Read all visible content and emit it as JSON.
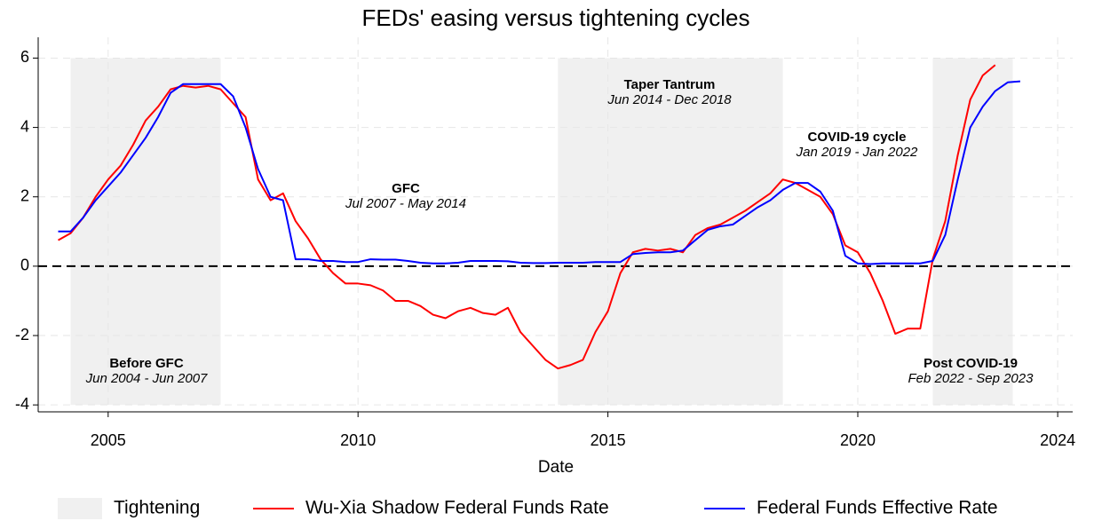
{
  "chart_data": {
    "type": "line",
    "title": "FEDs' easing versus tightening cycles",
    "x_label": "Date",
    "xlim": [
      2003.6,
      2024.3
    ],
    "xticks": [
      2005,
      2010,
      2015,
      2020,
      2024
    ],
    "ylim": [
      -4.2,
      6.6
    ],
    "yticks": [
      -4,
      -2,
      0,
      2,
      4,
      6
    ],
    "grid": true,
    "hline": 0,
    "shade_label": "Tightening",
    "shade_color": "#f0f0f0",
    "shaded_periods": [
      [
        2004.25,
        2007.25
      ],
      [
        2014.0,
        2018.5
      ],
      [
        2021.5,
        2023.1
      ]
    ],
    "annotations": [
      {
        "title": "Before GFC",
        "subtitle": "Jun 2004 - Jun 2007"
      },
      {
        "title": "GFC",
        "subtitle": "Jul 2007 - May 2014"
      },
      {
        "title": "Taper Tantrum",
        "subtitle": "Jun 2014 - Dec 2018"
      },
      {
        "title": "COVID-19 cycle",
        "subtitle": "Jan 2019 - Jan 2022"
      },
      {
        "title": "Post COVID-19",
        "subtitle": "Feb 2022 - Sep 2023"
      }
    ],
    "x": [
      2004,
      2004.25,
      2004.5,
      2004.75,
      2005,
      2005.25,
      2005.5,
      2005.75,
      2006,
      2006.25,
      2006.5,
      2006.75,
      2007,
      2007.25,
      2007.5,
      2007.75,
      2008,
      2008.25,
      2008.5,
      2008.75,
      2009,
      2009.25,
      2009.5,
      2009.75,
      2010,
      2010.25,
      2010.5,
      2010.75,
      2011,
      2011.25,
      2011.5,
      2011.75,
      2012,
      2012.25,
      2012.5,
      2012.75,
      2013,
      2013.25,
      2013.5,
      2013.75,
      2014,
      2014.25,
      2014.5,
      2014.75,
      2015,
      2015.25,
      2015.5,
      2015.75,
      2016,
      2016.25,
      2016.5,
      2016.75,
      2017,
      2017.25,
      2017.5,
      2017.75,
      2018,
      2018.25,
      2018.5,
      2018.75,
      2019,
      2019.25,
      2019.5,
      2019.75,
      2020,
      2020.25,
      2020.5,
      2020.75,
      2021,
      2021.25,
      2021.5,
      2021.75,
      2022,
      2022.25,
      2022.5,
      2022.75,
      2023,
      2023.25
    ],
    "series": [
      {
        "name": "Wu-Xia Shadow Federal Funds Rate",
        "color": "#ff0000",
        "values": [
          0.75,
          0.95,
          1.4,
          2.0,
          2.5,
          2.9,
          3.5,
          4.2,
          4.6,
          5.1,
          5.2,
          5.15,
          5.2,
          5.1,
          4.7,
          4.3,
          2.5,
          1.9,
          2.1,
          1.3,
          0.8,
          0.2,
          -0.2,
          -0.5,
          -0.5,
          -0.55,
          -0.7,
          -1.0,
          -1.0,
          -1.15,
          -1.4,
          -1.5,
          -1.3,
          -1.2,
          -1.35,
          -1.4,
          -1.2,
          -1.9,
          -2.3,
          -2.7,
          -2.95,
          -2.85,
          -2.7,
          -1.9,
          -1.3,
          -0.2,
          0.4,
          0.5,
          0.45,
          0.5,
          0.4,
          0.9,
          1.1,
          1.2,
          1.4,
          1.6,
          1.85,
          2.1,
          2.5,
          2.4,
          2.2,
          2.0,
          1.5,
          0.6,
          0.4,
          -0.2,
          -1.0,
          -1.95,
          -1.8,
          -1.8,
          0.2,
          1.3,
          3.2,
          4.8,
          5.5,
          5.8,
          null,
          null
        ]
      },
      {
        "name": "Federal Funds Effective Rate",
        "color": "#0000ff",
        "values": [
          1.0,
          1.0,
          1.4,
          1.9,
          2.3,
          2.7,
          3.2,
          3.7,
          4.3,
          5.0,
          5.25,
          5.25,
          5.25,
          5.25,
          4.9,
          4.0,
          2.8,
          2.0,
          1.9,
          0.2,
          0.2,
          0.15,
          0.15,
          0.12,
          0.12,
          0.2,
          0.19,
          0.19,
          0.15,
          0.1,
          0.08,
          0.08,
          0.1,
          0.15,
          0.15,
          0.15,
          0.14,
          0.1,
          0.09,
          0.09,
          0.1,
          0.1,
          0.1,
          0.12,
          0.12,
          0.12,
          0.35,
          0.38,
          0.4,
          0.4,
          0.45,
          0.75,
          1.05,
          1.15,
          1.2,
          1.45,
          1.7,
          1.9,
          2.2,
          2.4,
          2.4,
          2.15,
          1.6,
          0.3,
          0.08,
          0.06,
          0.08,
          0.08,
          0.08,
          0.08,
          0.15,
          0.9,
          2.5,
          4.0,
          4.6,
          5.05,
          5.3,
          5.33
        ]
      }
    ]
  }
}
